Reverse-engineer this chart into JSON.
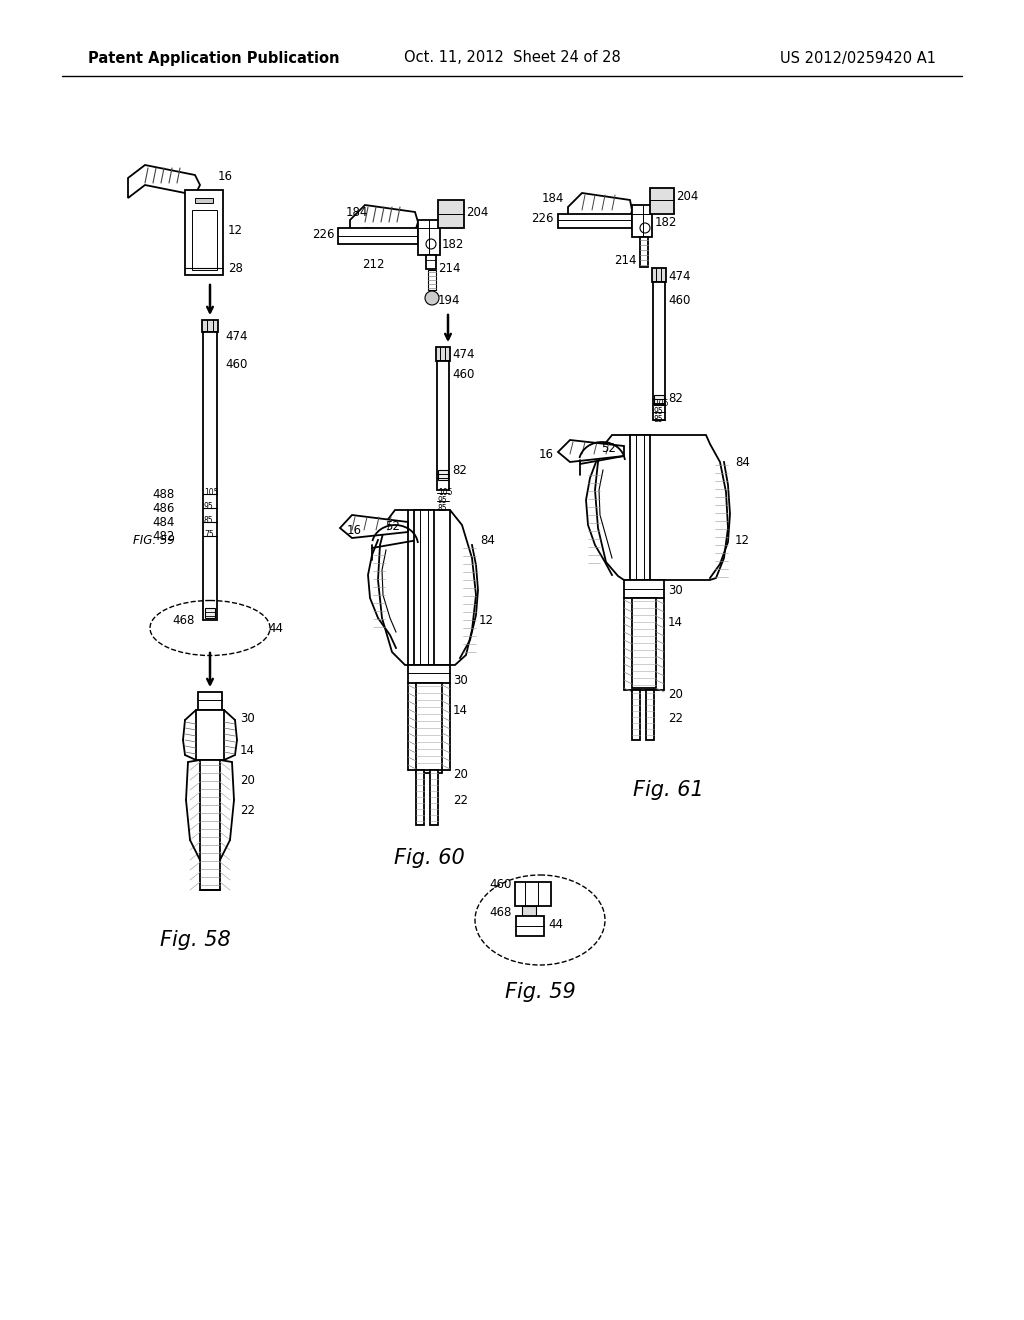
{
  "title_left": "Patent Application Publication",
  "title_center": "Oct. 11, 2012  Sheet 24 of 28",
  "title_right": "US 2012/0259420 A1",
  "fig58_label": "Fig. 58",
  "fig59_label": "Fig. 59",
  "fig60_label": "Fig. 60",
  "fig61_label": "Fig. 61",
  "background_color": "#ffffff",
  "line_color": "#000000",
  "title_fontsize": 10.5,
  "fig_label_fontsize": 15
}
